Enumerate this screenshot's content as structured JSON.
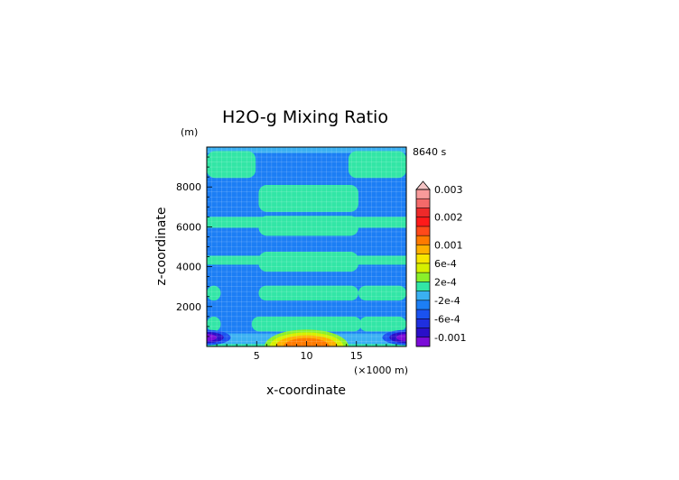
{
  "chart_data": {
    "type": "heatmap",
    "title": "H2O-g Mixing Ratio",
    "time_label": "8640 s",
    "xlabel": "x-coordinate",
    "ylabel": "z-coordinate",
    "x_unit_label": "(×1000 m)",
    "y_unit_label": "(m)",
    "xlim": [
      0,
      20000
    ],
    "ylim": [
      0,
      10000
    ],
    "x_ticks": [
      5000,
      10000,
      15000
    ],
    "x_tick_labels": [
      "5",
      "10",
      "15"
    ],
    "y_ticks": [
      2000,
      4000,
      6000,
      8000
    ],
    "y_tick_labels": [
      "2000",
      "4000",
      "6000",
      "8000"
    ],
    "grid": true,
    "colorbar": {
      "levels": [
        {
          "color": "#7B0CD8",
          "label": "-0.001"
        },
        {
          "color": "#2A0FC8",
          "label": ""
        },
        {
          "color": "#1F2FE0",
          "label": "-6e-4"
        },
        {
          "color": "#1A52F0",
          "label": ""
        },
        {
          "color": "#1C7EF5",
          "label": "-2e-4"
        },
        {
          "color": "#3AB0F2",
          "label": ""
        },
        {
          "color": "#32E6A6",
          "label": "2e-4"
        },
        {
          "color": "#8AF02A",
          "label": ""
        },
        {
          "color": "#D6F000",
          "label": "6e-4"
        },
        {
          "color": "#F7E600",
          "label": ""
        },
        {
          "color": "#FFB000",
          "label": "0.001"
        },
        {
          "color": "#FF7A00",
          "label": ""
        },
        {
          "color": "#FF4A1A",
          "label": ""
        },
        {
          "color": "#FF1A1A",
          "label": "0.002"
        },
        {
          "color": "#EE2A2A",
          "label": ""
        },
        {
          "color": "#F46A6A",
          "label": ""
        },
        {
          "color": "#F89A9A",
          "label": "0.003"
        }
      ],
      "extend_top_color": "#F4C4C4"
    },
    "field": {
      "background_color": "#1C7EF5",
      "regions": [
        {
          "kind": "rect",
          "x": [
            0,
            20000
          ],
          "z": [
            0,
            650
          ],
          "color": "#3AB0F2"
        },
        {
          "kind": "rect",
          "x": [
            0,
            20000
          ],
          "z": [
            9350,
            10000
          ],
          "color": "#3AB0F2"
        },
        {
          "kind": "rect",
          "x": [
            0,
            20000
          ],
          "z": [
            0,
            120
          ],
          "color": "#32E6A6"
        },
        {
          "kind": "rect",
          "x": [
            0,
            20000
          ],
          "z": [
            8600,
            9700
          ],
          "color": "#1C7EF5"
        },
        {
          "kind": "rrect",
          "x": [
            0,
            4900
          ],
          "z": [
            8450,
            9800
          ],
          "color": "#32E6A6"
        },
        {
          "kind": "rrect",
          "x": [
            14200,
            20000
          ],
          "z": [
            8450,
            9800
          ],
          "color": "#32E6A6"
        },
        {
          "kind": "rrect",
          "x": [
            5200,
            15200
          ],
          "z": [
            6750,
            8100
          ],
          "color": "#32E6A6"
        },
        {
          "kind": "rect",
          "x": [
            0,
            20000
          ],
          "z": [
            5950,
            6500
          ],
          "color": "#32E6A6"
        },
        {
          "kind": "rrect",
          "x": [
            5200,
            15200
          ],
          "z": [
            5550,
            6550
          ],
          "color": "#32E6A6"
        },
        {
          "kind": "rect",
          "x": [
            0,
            20000
          ],
          "z": [
            4100,
            4550
          ],
          "color": "#32E6A6"
        },
        {
          "kind": "rrect",
          "x": [
            5200,
            15200
          ],
          "z": [
            3750,
            4750
          ],
          "color": "#32E6A6"
        },
        {
          "kind": "rrect",
          "x": [
            5200,
            15200
          ],
          "z": [
            2300,
            3050
          ],
          "color": "#32E6A6"
        },
        {
          "kind": "rrect",
          "x": [
            0,
            1400
          ],
          "z": [
            2300,
            3050
          ],
          "color": "#32E6A6"
        },
        {
          "kind": "rrect",
          "x": [
            15200,
            20000
          ],
          "z": [
            2300,
            3050
          ],
          "color": "#32E6A6"
        },
        {
          "kind": "rrect",
          "x": [
            4500,
            15500
          ],
          "z": [
            750,
            1500
          ],
          "color": "#32E6A6"
        },
        {
          "kind": "rrect",
          "x": [
            0,
            1400
          ],
          "z": [
            750,
            1500
          ],
          "color": "#32E6A6"
        },
        {
          "kind": "rrect",
          "x": [
            15300,
            20000
          ],
          "z": [
            750,
            1500
          ],
          "color": "#32E6A6"
        },
        {
          "kind": "ellipse",
          "cx": 10000,
          "cz": 0,
          "rx": 4200,
          "rz": 850,
          "color": "#8AF02A"
        },
        {
          "kind": "ellipse",
          "cx": 10000,
          "cz": 0,
          "rx": 3700,
          "rz": 700,
          "color": "#D6F000"
        },
        {
          "kind": "ellipse",
          "cx": 10000,
          "cz": 0,
          "rx": 3100,
          "rz": 560,
          "color": "#FFB000"
        },
        {
          "kind": "ellipse",
          "cx": 10000,
          "cz": 0,
          "rx": 2300,
          "rz": 420,
          "color": "#FF7A00"
        },
        {
          "kind": "ellipse",
          "cx": 0,
          "cz": 450,
          "rx": 2400,
          "rz": 380,
          "color": "#1A52F0"
        },
        {
          "kind": "ellipse",
          "cx": 0,
          "cz": 450,
          "rx": 1700,
          "rz": 280,
          "color": "#2A0FC8"
        },
        {
          "kind": "ellipse",
          "cx": 0,
          "cz": 450,
          "rx": 1000,
          "rz": 180,
          "color": "#7B0CD8"
        },
        {
          "kind": "ellipse",
          "cx": 20000,
          "cz": 450,
          "rx": 2400,
          "rz": 380,
          "color": "#1A52F0"
        },
        {
          "kind": "ellipse",
          "cx": 20000,
          "cz": 450,
          "rx": 1700,
          "rz": 280,
          "color": "#2A0FC8"
        },
        {
          "kind": "ellipse",
          "cx": 20000,
          "cz": 450,
          "rx": 1000,
          "rz": 180,
          "color": "#7B0CD8"
        }
      ]
    }
  }
}
